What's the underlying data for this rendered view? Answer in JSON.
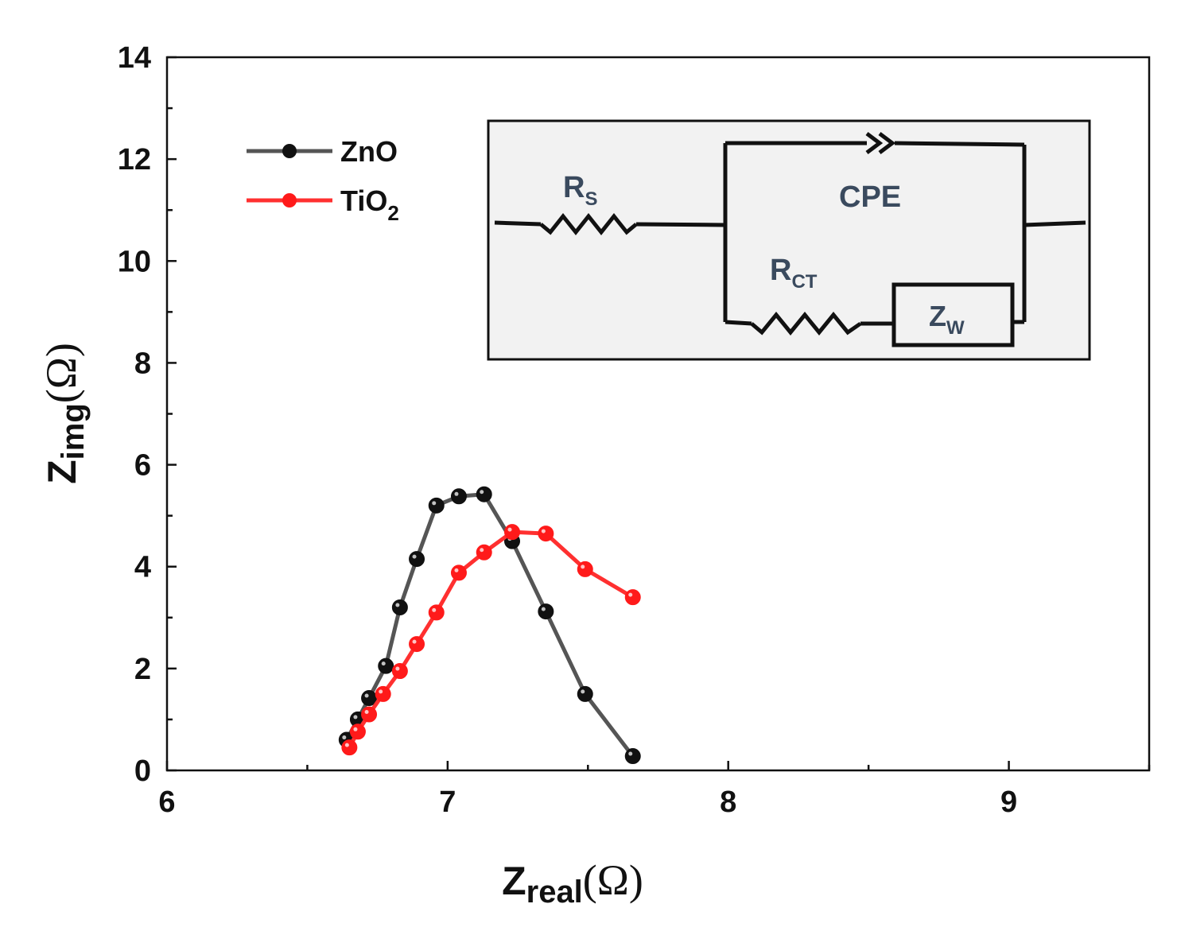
{
  "chart_data": {
    "type": "line",
    "xlabel": {
      "main": "Z",
      "sub": "real",
      "unit": "(Ω)"
    },
    "ylabel": {
      "main": "Z",
      "sub": "img",
      "unit": "(Ω)"
    },
    "xlim": [
      6,
      9.5
    ],
    "ylim": [
      0,
      14
    ],
    "xticks": [
      "6",
      "7",
      "8",
      "9"
    ],
    "yticks": [
      "0",
      "2",
      "4",
      "6",
      "8",
      "10",
      "12",
      "14"
    ],
    "series": [
      {
        "name": "ZnO",
        "color": "#555555",
        "marker_color": "#111111",
        "points": [
          [
            6.64,
            0.6
          ],
          [
            6.68,
            1.0
          ],
          [
            6.72,
            1.42
          ],
          [
            6.78,
            2.05
          ],
          [
            6.83,
            3.2
          ],
          [
            6.89,
            4.15
          ],
          [
            6.96,
            5.2
          ],
          [
            7.04,
            5.38
          ],
          [
            7.13,
            5.42
          ],
          [
            7.23,
            4.5
          ],
          [
            7.35,
            3.12
          ],
          [
            7.49,
            1.5
          ],
          [
            7.66,
            0.28
          ]
        ]
      },
      {
        "name": "TiO2",
        "color": "#ff3030",
        "marker_color": "#ff1a1a",
        "points": [
          [
            6.65,
            0.45
          ],
          [
            6.68,
            0.76
          ],
          [
            6.72,
            1.1
          ],
          [
            6.77,
            1.5
          ],
          [
            6.83,
            1.95
          ],
          [
            6.89,
            2.48
          ],
          [
            6.96,
            3.1
          ],
          [
            7.04,
            3.88
          ],
          [
            7.13,
            4.28
          ],
          [
            7.23,
            4.68
          ],
          [
            7.35,
            4.65
          ],
          [
            7.49,
            3.95
          ],
          [
            7.66,
            3.4
          ]
        ]
      }
    ],
    "legend": {
      "position": "top-left",
      "entries": [
        {
          "label": "ZnO",
          "sub": ""
        },
        {
          "label": "TiO",
          "sub": "2"
        }
      ]
    },
    "inset_circuit": {
      "rs": {
        "main": "R",
        "sub": "S"
      },
      "cpe": "CPE",
      "rct": {
        "main": "R",
        "sub": "CT"
      },
      "zw": {
        "main": "Z",
        "sub": "W"
      }
    }
  }
}
